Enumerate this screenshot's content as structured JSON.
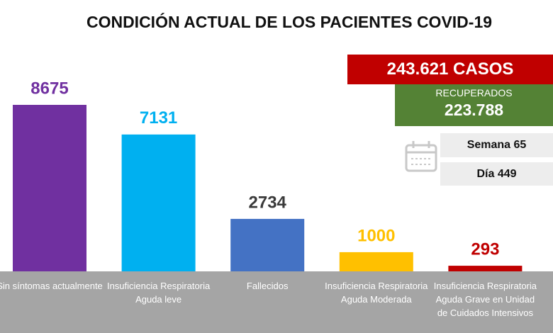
{
  "chart_data": {
    "type": "bar",
    "title": "CONDICIÓN ACTUAL DE LOS PACIENTES COVID-19",
    "categories": [
      "Sin síntomas actualmente",
      "Insuficiencia Respiratoria Aguda leve",
      "Fallecidos",
      "Insuficiencia Respiratoria Aguda Moderada",
      "Insuficiencia Respiratoria Aguda Grave en Unidad de Cuidados Intensivos"
    ],
    "values": [
      8675,
      7131,
      2734,
      1000,
      293
    ],
    "colors": [
      "#7030a0",
      "#00b0f0",
      "#4472c4",
      "#ffc000",
      "#c00000"
    ],
    "label_colors": [
      "#7030a0",
      "#00b0f0",
      "#3a3a3a",
      "#ffc000",
      "#c00000"
    ]
  },
  "summary": {
    "cases": "243.621 CASOS",
    "recovered_label": "RECUPERADOS",
    "recovered": "223.788",
    "week": "Semana 65",
    "day": "Día 449"
  }
}
